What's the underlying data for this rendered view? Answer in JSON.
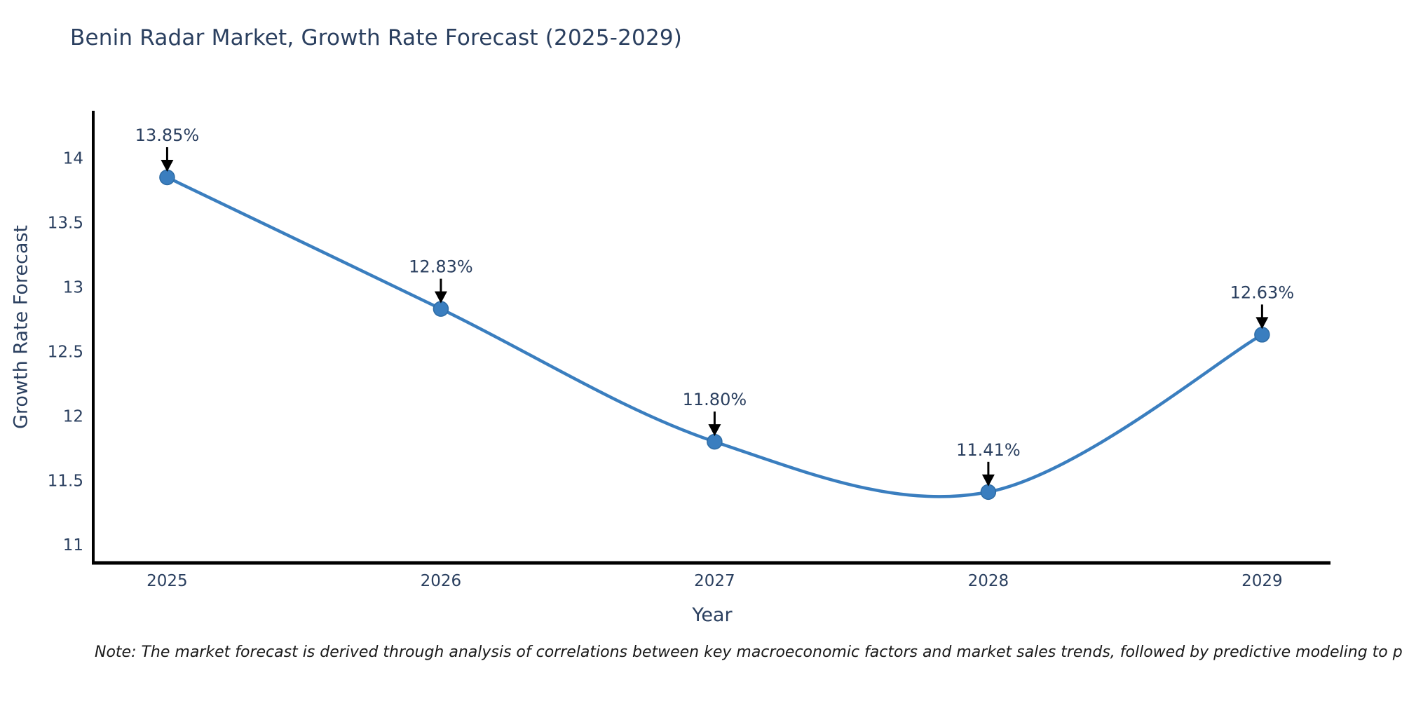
{
  "title": "Benin Radar Market, Growth Rate Forecast (2025-2029)",
  "note": "Note: The market forecast is derived through analysis of correlations between key macroeconomic factors and market sales trends, followed by predictive modeling to project future sal",
  "chart_data": {
    "type": "line",
    "line_shape": "spline",
    "title": "Benin Radar Market, Growth Rate Forecast (2025-2029)",
    "xlabel": "Year",
    "ylabel": "Growth Rate Forecast",
    "x": [
      2025,
      2026,
      2027,
      2028,
      2029
    ],
    "values": [
      13.85,
      12.83,
      11.8,
      11.41,
      12.63
    ],
    "point_labels": [
      "13.85%",
      "12.83%",
      "11.80%",
      "11.41%",
      "12.63%"
    ],
    "xtick_labels": [
      "2025",
      "2026",
      "2027",
      "2028",
      "2029"
    ],
    "yticks": [
      11,
      11.5,
      12,
      12.5,
      13,
      13.5,
      14
    ],
    "ytick_labels": [
      "11",
      "11.5",
      "12",
      "12.5",
      "13",
      "13.5",
      "14"
    ],
    "xlim": [
      2024.73,
      2029.25
    ],
    "ylim": [
      10.86,
      14.35
    ],
    "grid": false,
    "legend": "none",
    "colors": {
      "line": "#3a7ebf",
      "marker": "#3a7ebf",
      "marker_edge": "#2e6ca5",
      "axis": "#000000",
      "tick_text": "#2a3f5f",
      "annotation_text": "#2a3f5f",
      "annotation_arrow": "#000000",
      "background": "#ffffff"
    }
  }
}
